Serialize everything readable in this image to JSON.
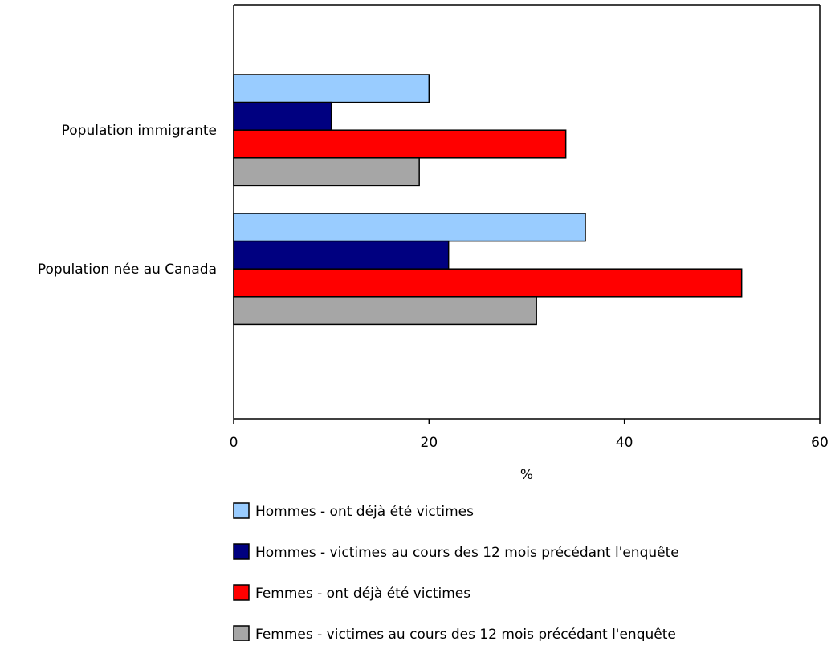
{
  "chart_data": {
    "type": "bar",
    "orientation": "horizontal",
    "categories": [
      "Population immigrante",
      "Population née au Canada"
    ],
    "series": [
      {
        "name": "Hommes - ont déjà été victimes",
        "values": [
          20,
          36
        ],
        "color": "#99ccff"
      },
      {
        "name": "Hommes - victimes au cours des 12 mois précédant l'enquête",
        "values": [
          10,
          22
        ],
        "color": "#000080"
      },
      {
        "name": "Femmes - ont déjà été victimes",
        "values": [
          34,
          52
        ],
        "color": "#ff0000"
      },
      {
        "name": "Femmes - victimes au cours des 12 mois précédant l'enquête",
        "values": [
          19,
          31
        ],
        "color": "#a6a6a6"
      }
    ],
    "xlabel": "%",
    "ylabel": "",
    "xlim": [
      0,
      60
    ],
    "xticks": [
      0,
      20,
      40,
      60
    ],
    "grid": false,
    "legend_position": "bottom"
  }
}
